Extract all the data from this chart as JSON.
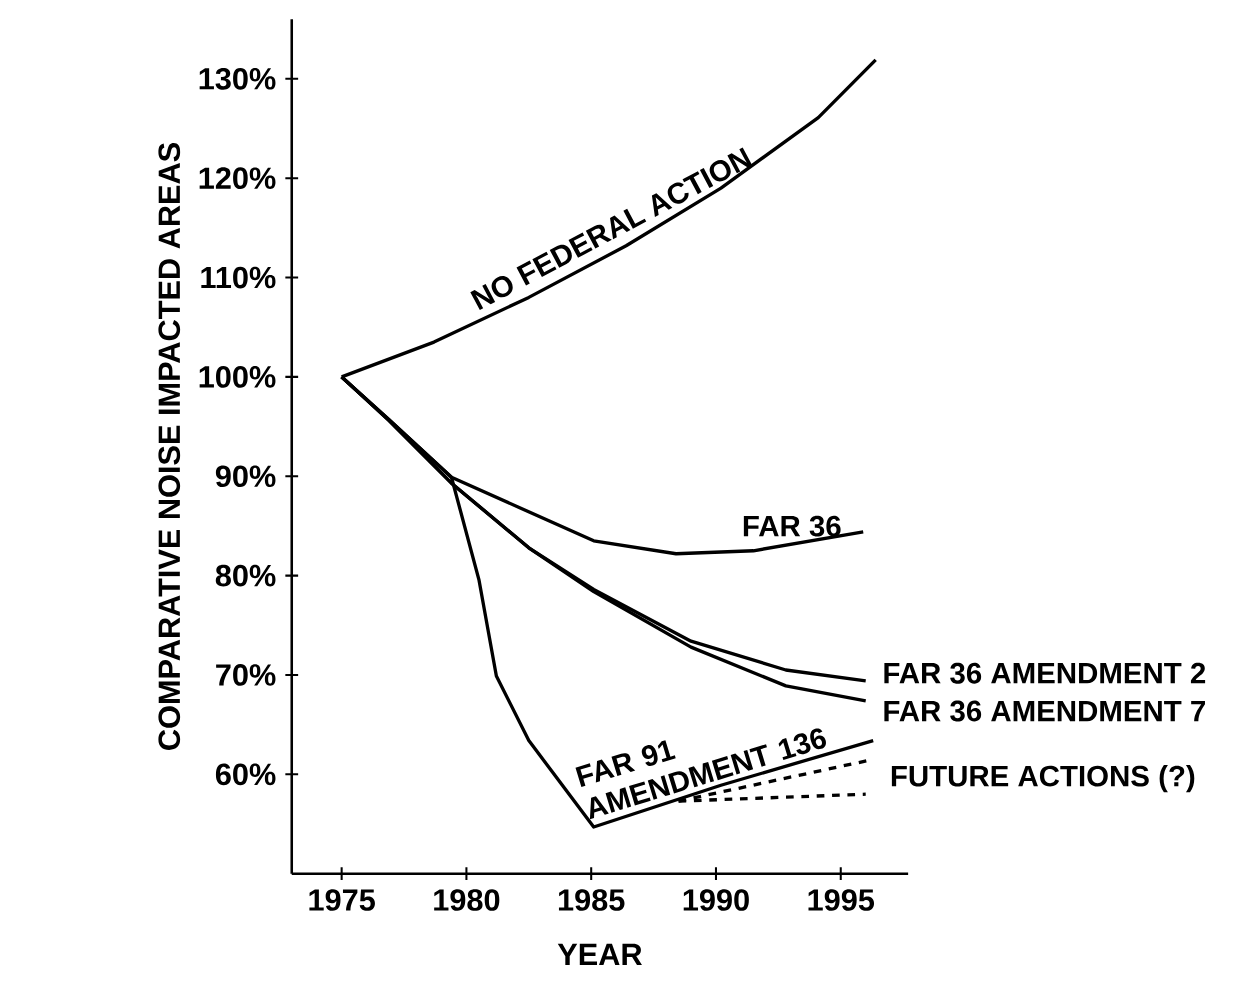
{
  "chart_data": {
    "type": "line",
    "xlabel": "YEAR",
    "ylabel": "COMPARATIVE NOISE IMPACTED AREAS",
    "xlim": [
      1973,
      1997.7
    ],
    "ylim": [
      50,
      136
    ],
    "xticks": [
      1975,
      1980,
      1985,
      1990,
      1995
    ],
    "yticks": [
      {
        "value": 60,
        "label": "60%"
      },
      {
        "value": 70,
        "label": "70%"
      },
      {
        "value": 80,
        "label": "80%"
      },
      {
        "value": 90,
        "label": "90%"
      },
      {
        "value": 100,
        "label": "100%"
      },
      {
        "value": 110,
        "label": "110%"
      },
      {
        "value": 120,
        "label": "120%"
      },
      {
        "value": 130,
        "label": "130%"
      }
    ],
    "marker": "none",
    "series": [
      {
        "name": "NO FEDERAL ACTION",
        "color": "#000000",
        "line_style": "solid",
        "x": [
          1975,
          1978.7,
          1982.5,
          1986.4,
          1990.2,
          1994.1,
          1996.4
        ],
        "values": [
          100,
          103.5,
          108,
          113.2,
          119,
          126.1,
          131.9
        ]
      },
      {
        "name": "FAR 36",
        "color": "#000000",
        "line_style": "solid",
        "x": [
          1975,
          1976.9,
          1979.4,
          1985.1,
          1988.4,
          1991.5,
          1995.9
        ],
        "values": [
          100,
          95.7,
          89.9,
          83.5,
          82.2,
          82.5,
          84.4
        ]
      },
      {
        "name": "FAR 36 AMENDMENT 2",
        "color": "#000000",
        "line_style": "solid",
        "x": [
          1975,
          1976.9,
          1979.4,
          1982.5,
          1985.1,
          1989,
          1992.8,
          1996
        ],
        "values": [
          100,
          95.6,
          89.3,
          82.8,
          78.6,
          73.4,
          70.5,
          69.4
        ]
      },
      {
        "name": "FAR 36 AMENDMENT 7",
        "color": "#000000",
        "line_style": "solid",
        "x": [
          1975,
          1976.9,
          1979.4,
          1982.5,
          1985.1,
          1989,
          1992.8,
          1996
        ],
        "values": [
          100,
          95.6,
          89.3,
          82.8,
          78.4,
          72.8,
          68.9,
          67.4
        ]
      },
      {
        "name": "FAR 91 AMENDMENT 136",
        "color": "#000000",
        "line_style": "solid",
        "x": [
          1975,
          1976.9,
          1979.4,
          1980.5,
          1981.2,
          1982.5,
          1985.1,
          1990.2,
          1996.3
        ],
        "values": [
          100,
          95.7,
          89.9,
          79.6,
          69.9,
          63.4,
          54.7,
          58.9,
          63.4
        ]
      },
      {
        "name": "FUTURE ACTIONS (?)",
        "color": "#000000",
        "line_style": "dashed",
        "x": [
          1988.5,
          1996.3
        ],
        "values": [
          57.3,
          61.5
        ]
      },
      {
        "color": "#000000",
        "line_style": "dashed",
        "x": [
          1988.5,
          1996
        ],
        "values": [
          57.3,
          58
        ]
      }
    ]
  }
}
